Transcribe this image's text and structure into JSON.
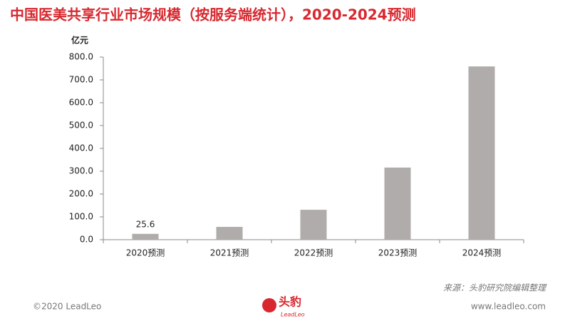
{
  "chart_data": {
    "type": "bar",
    "title": "中国医美共享行业市场规模（按服务端统计），2020-2024预测",
    "y_unit": "亿元",
    "categories": [
      "2020预测",
      "2021预测",
      "2022预测",
      "2023预测",
      "2024预测"
    ],
    "values": [
      25.6,
      56,
      131,
      316,
      759
    ],
    "value_labels": [
      "25.6",
      null,
      null,
      null,
      null
    ],
    "color": "#b0acab",
    "ylim": [
      0,
      800
    ],
    "yticks": [
      {
        "value": 0,
        "label": "0.0"
      },
      {
        "value": 100,
        "label": "100.0"
      },
      {
        "value": 200,
        "label": "200.0"
      },
      {
        "value": 300,
        "label": "300.0"
      },
      {
        "value": 400,
        "label": "400.0"
      },
      {
        "value": 500,
        "label": "500.0"
      },
      {
        "value": 600,
        "label": "600.0"
      },
      {
        "value": 700,
        "label": "700.0"
      },
      {
        "value": 800,
        "label": "800.0"
      }
    ],
    "grid": false
  },
  "footer": {
    "source": "来源：头豹研究院编辑整理",
    "copyright": "©2020 LeadLeo",
    "logo": "头豹",
    "logo_sub": "LeadLeo",
    "website": "www.leadleo.com"
  }
}
